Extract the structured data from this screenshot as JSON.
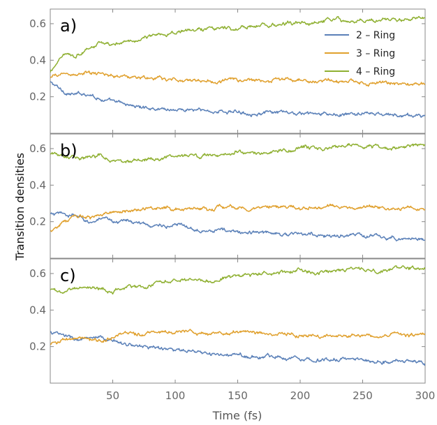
{
  "chart_data": {
    "type": "line",
    "xlabel": "Time (fs)",
    "ylabel": "Transition densities",
    "xlim": [
      0,
      300
    ],
    "ylim": [
      0.0,
      0.68
    ],
    "x_ticks": [
      50,
      100,
      150,
      200,
      250,
      300
    ],
    "y_ticks": [
      0.2,
      0.4,
      0.6
    ],
    "legend": {
      "placement": "top-right",
      "panel": "a)"
    },
    "grid": false,
    "x": [
      0,
      10,
      20,
      30,
      40,
      50,
      60,
      70,
      80,
      90,
      100,
      110,
      120,
      130,
      140,
      150,
      160,
      170,
      180,
      190,
      200,
      210,
      220,
      230,
      240,
      250,
      260,
      270,
      280,
      290,
      300
    ],
    "panels": [
      {
        "label": "a)",
        "series": [
          {
            "name": "2 – Ring",
            "color": "#5a80b8",
            "values": [
              0.28,
              0.23,
              0.21,
              0.22,
              0.19,
              0.17,
              0.16,
              0.145,
              0.14,
              0.135,
              0.13,
              0.13,
              0.125,
              0.12,
              0.12,
              0.115,
              0.115,
              0.11,
              0.11,
              0.11,
              0.105,
              0.105,
              0.1,
              0.1,
              0.1,
              0.11,
              0.105,
              0.1,
              0.095,
              0.095,
              0.1
            ]
          },
          {
            "name": "3 – Ring",
            "color": "#e0a02d",
            "values": [
              0.3,
              0.33,
              0.32,
              0.33,
              0.32,
              0.32,
              0.31,
              0.305,
              0.3,
              0.295,
              0.29,
              0.29,
              0.29,
              0.285,
              0.29,
              0.29,
              0.29,
              0.29,
              0.29,
              0.295,
              0.29,
              0.285,
              0.285,
              0.28,
              0.28,
              0.275,
              0.275,
              0.27,
              0.27,
              0.265,
              0.27
            ]
          },
          {
            "name": "4 – Ring",
            "color": "#8fb032",
            "values": [
              0.33,
              0.44,
              0.43,
              0.46,
              0.5,
              0.47,
              0.51,
              0.51,
              0.53,
              0.54,
              0.56,
              0.56,
              0.57,
              0.58,
              0.58,
              0.57,
              0.58,
              0.59,
              0.59,
              0.6,
              0.6,
              0.6,
              0.61,
              0.62,
              0.61,
              0.62,
              0.62,
              0.63,
              0.62,
              0.635,
              0.63
            ]
          }
        ]
      },
      {
        "label": "b)",
        "series": [
          {
            "name": "2 – Ring",
            "color": "#5a80b8",
            "values": [
              0.24,
              0.24,
              0.23,
              0.2,
              0.21,
              0.2,
              0.21,
              0.19,
              0.18,
              0.18,
              0.18,
              0.17,
              0.16,
              0.16,
              0.15,
              0.14,
              0.14,
              0.14,
              0.14,
              0.13,
              0.13,
              0.13,
              0.12,
              0.12,
              0.13,
              0.12,
              0.12,
              0.11,
              0.11,
              0.11,
              0.1
            ]
          },
          {
            "name": "3 – Ring",
            "color": "#e0a02d",
            "values": [
              0.15,
              0.2,
              0.22,
              0.23,
              0.23,
              0.25,
              0.26,
              0.27,
              0.27,
              0.28,
              0.27,
              0.27,
              0.27,
              0.28,
              0.28,
              0.28,
              0.27,
              0.27,
              0.28,
              0.28,
              0.27,
              0.28,
              0.28,
              0.28,
              0.28,
              0.28,
              0.28,
              0.27,
              0.27,
              0.28,
              0.27
            ]
          },
          {
            "name": "4 – Ring",
            "color": "#8fb032",
            "values": [
              0.57,
              0.57,
              0.56,
              0.55,
              0.56,
              0.54,
              0.52,
              0.53,
              0.54,
              0.55,
              0.55,
              0.56,
              0.56,
              0.57,
              0.57,
              0.58,
              0.58,
              0.58,
              0.59,
              0.59,
              0.6,
              0.6,
              0.6,
              0.6,
              0.61,
              0.61,
              0.61,
              0.6,
              0.61,
              0.62,
              0.615
            ]
          }
        ]
      },
      {
        "label": "c)",
        "series": [
          {
            "name": "2 – Ring",
            "color": "#5a80b8",
            "values": [
              0.28,
              0.26,
              0.24,
              0.24,
              0.24,
              0.23,
              0.22,
              0.2,
              0.2,
              0.19,
              0.18,
              0.17,
              0.16,
              0.16,
              0.15,
              0.15,
              0.15,
              0.14,
              0.15,
              0.14,
              0.14,
              0.13,
              0.13,
              0.13,
              0.13,
              0.13,
              0.12,
              0.12,
              0.12,
              0.12,
              0.11
            ]
          },
          {
            "name": "3 – Ring",
            "color": "#e0a02d",
            "values": [
              0.21,
              0.24,
              0.24,
              0.24,
              0.23,
              0.25,
              0.27,
              0.27,
              0.27,
              0.28,
              0.28,
              0.29,
              0.28,
              0.28,
              0.28,
              0.28,
              0.28,
              0.27,
              0.27,
              0.27,
              0.26,
              0.26,
              0.26,
              0.26,
              0.26,
              0.26,
              0.26,
              0.26,
              0.26,
              0.26,
              0.26
            ]
          },
          {
            "name": "4 – Ring",
            "color": "#8fb032",
            "values": [
              0.51,
              0.5,
              0.52,
              0.53,
              0.52,
              0.5,
              0.52,
              0.53,
              0.54,
              0.56,
              0.57,
              0.56,
              0.56,
              0.56,
              0.58,
              0.59,
              0.58,
              0.6,
              0.6,
              0.61,
              0.62,
              0.6,
              0.61,
              0.61,
              0.62,
              0.63,
              0.61,
              0.62,
              0.63,
              0.63,
              0.62
            ]
          }
        ]
      }
    ]
  }
}
